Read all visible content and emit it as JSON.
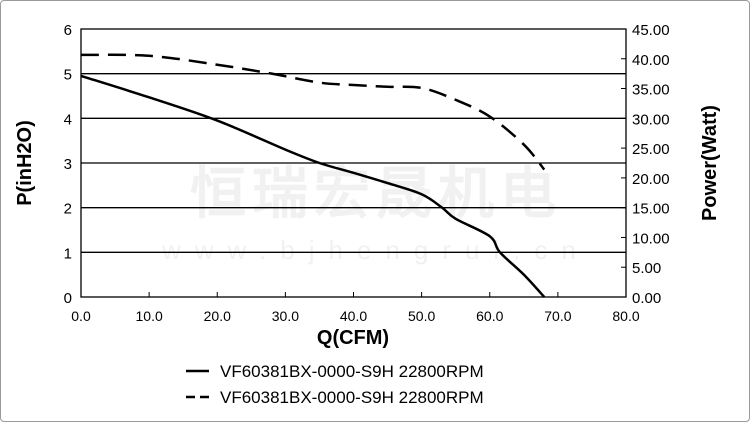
{
  "chart_data": {
    "type": "line",
    "xlabel": "Q(CFM)",
    "ylabel": "P(inH2O)",
    "y2label": "Power(Watt)",
    "xlim": [
      0,
      80
    ],
    "ylim": [
      0,
      6
    ],
    "y2lim": [
      0,
      45
    ],
    "xticks": [
      "0.0",
      "10.0",
      "20.0",
      "30.0",
      "40.0",
      "50.0",
      "60.0",
      "70.0",
      "80.0"
    ],
    "yticks": [
      "0",
      "1",
      "2",
      "3",
      "4",
      "5",
      "6"
    ],
    "y2ticks": [
      "0.00",
      "5.00",
      "10.00",
      "15.00",
      "20.00",
      "25.00",
      "30.00",
      "35.00",
      "40.00",
      "45.00"
    ],
    "grid": "horizontal",
    "legend_position": "bottom",
    "watermark": [
      "恒瑞宏晟机电",
      "www.bjhengrui.cn"
    ],
    "series": [
      {
        "name": "VF60381BX-0000-S9H 22800RPM",
        "axis": "left",
        "style": "solid",
        "x": [
          0,
          10,
          20,
          30,
          35,
          40,
          45,
          50,
          53,
          55,
          60,
          61.5,
          65,
          68
        ],
        "y": [
          4.95,
          4.47,
          3.95,
          3.3,
          3.0,
          2.78,
          2.55,
          2.3,
          2.0,
          1.75,
          1.36,
          1.0,
          0.5,
          0
        ]
      },
      {
        "name": "VF60381BX-0000-S9H 22800RPM",
        "axis": "right",
        "style": "dashed",
        "x": [
          0,
          10,
          20,
          28,
          35,
          40,
          45,
          50,
          55,
          60,
          65,
          68
        ],
        "y": [
          40.65,
          40.5,
          39.0,
          37.5,
          36.0,
          35.6,
          35.3,
          35.1,
          33.1,
          30.3,
          25.6,
          21.4
        ]
      }
    ]
  }
}
